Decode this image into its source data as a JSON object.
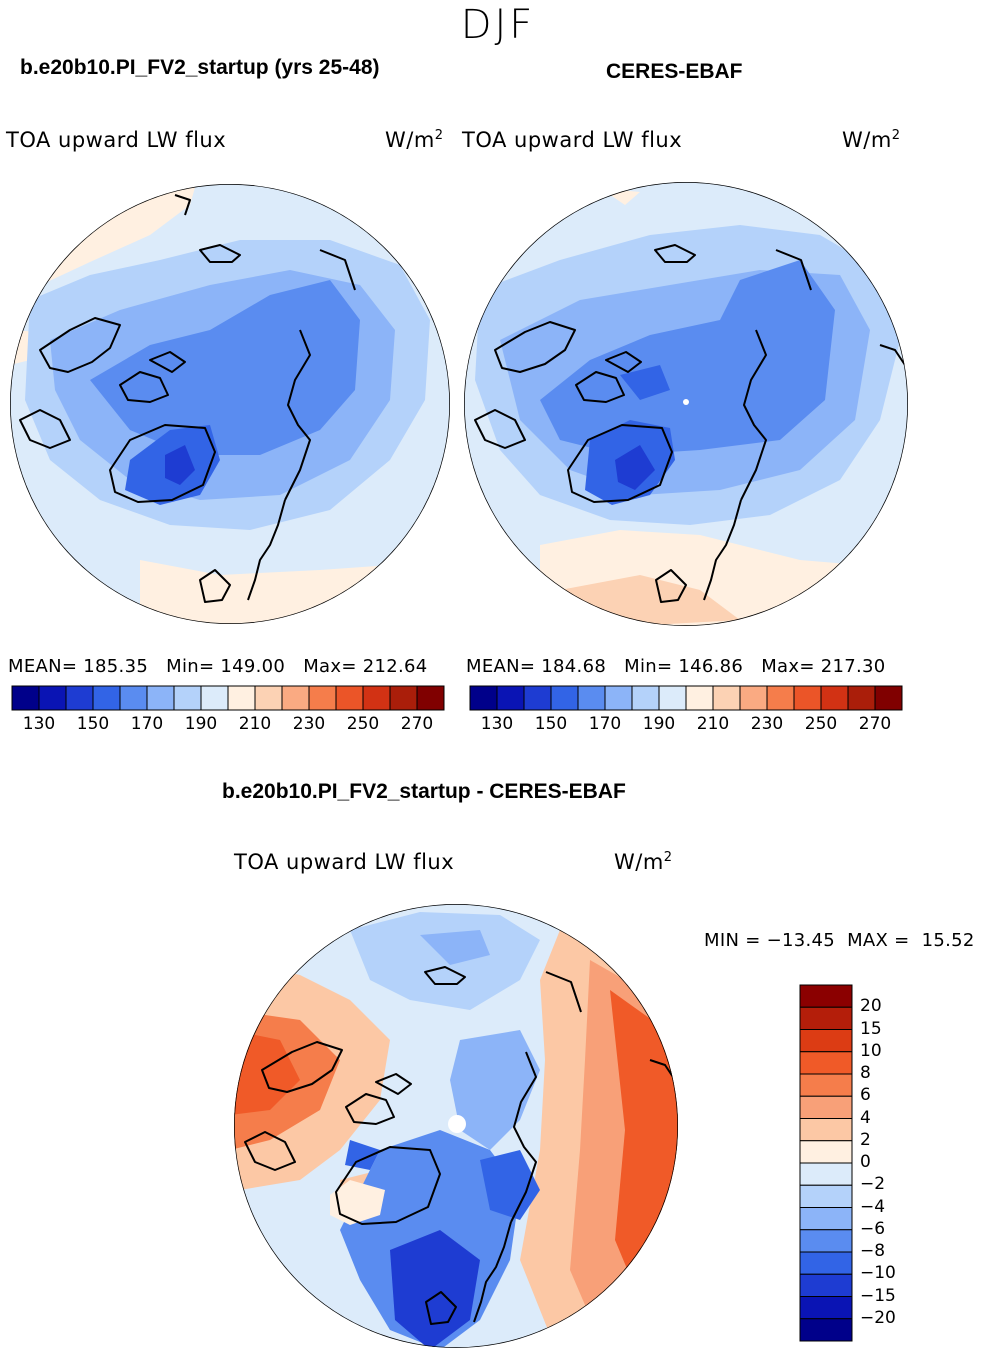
{
  "season": "DJF",
  "left_panel": {
    "case": "b.e20b10.PI_FV2_startup (yrs 25-48)",
    "variable": "TOA upward LW flux",
    "units_base": "W/m",
    "units_exp": "2",
    "stats": "MEAN= 185.35   Min= 149.00   Max= 212.64"
  },
  "right_panel": {
    "case": "CERES-EBAF",
    "variable": "TOA upward LW flux",
    "units_base": "W/m",
    "units_exp": "2",
    "stats": "MEAN= 184.68   Min= 146.86   Max= 217.30"
  },
  "abs_colorbar": {
    "colors": [
      "#00008a",
      "#0a14b4",
      "#1e3cd2",
      "#3264e6",
      "#5a8cf0",
      "#8cb4f8",
      "#b4d2fa",
      "#dcebfa",
      "#fff0e1",
      "#fcd2b4",
      "#faaa82",
      "#f57d4b",
      "#eb5528",
      "#d23214",
      "#aa1e0a",
      "#800000"
    ],
    "ticks": [
      "130",
      "150",
      "170",
      "190",
      "210",
      "230",
      "250",
      "270"
    ]
  },
  "diff_panel": {
    "title": "b.e20b10.PI_FV2_startup - CERES-EBAF",
    "variable": "TOA upward LW flux",
    "units_base": "W/m",
    "units_exp": "2",
    "minmax": "MIN = −13.45  MAX =  15.52"
  },
  "diff_colorbar": {
    "colors": [
      "#8b0000",
      "#b41e0a",
      "#dc3c14",
      "#f05a28",
      "#f57d4b",
      "#f8a078",
      "#fcc8a5",
      "#fff0e1",
      "#dcebfa",
      "#b4d2fa",
      "#8cb4f8",
      "#5a8cf0",
      "#3264e6",
      "#1e3cd2",
      "#0a14b4",
      "#00008a"
    ],
    "labels": [
      "20",
      "15",
      "10",
      "8",
      "6",
      "4",
      "2",
      "0",
      "−2",
      "−4",
      "−6",
      "−8",
      "−10",
      "−15",
      "−20"
    ]
  }
}
